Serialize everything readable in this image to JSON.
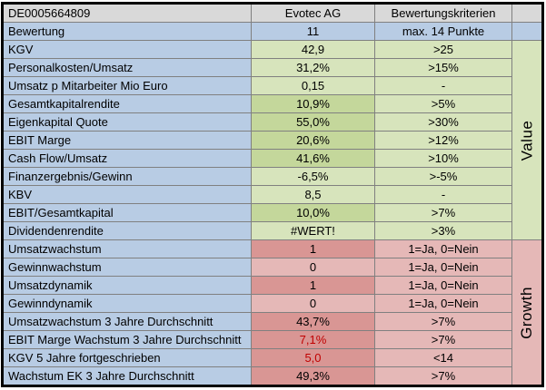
{
  "table": {
    "header": {
      "isin": "DE0005664809",
      "company": "Evotec AG",
      "criteria_title": "Bewertungskriterien"
    },
    "score": {
      "label": "Bewertung",
      "value": "11",
      "criteria": "max. 14 Punkte"
    },
    "sections": [
      {
        "name": "Value",
        "rows": [
          {
            "label": "KGV",
            "value": "42,9",
            "criteria": ">25",
            "value_bg": "light",
            "value_color": "black"
          },
          {
            "label": "Personalkosten/Umsatz",
            "value": "31,2%",
            "criteria": ">15%",
            "value_bg": "light",
            "value_color": "black"
          },
          {
            "label": "Umsatz p Mitarbeiter Mio Euro",
            "value": "0,15",
            "criteria": "-",
            "value_bg": "light",
            "value_color": "black"
          },
          {
            "label": "Gesamtkapitalrendite",
            "value": "10,9%",
            "criteria": ">5%",
            "value_bg": "dark",
            "value_color": "black"
          },
          {
            "label": "Eigenkapital Quote",
            "value": "55,0%",
            "criteria": ">30%",
            "value_bg": "dark",
            "value_color": "black"
          },
          {
            "label": "EBIT Marge",
            "value": "20,6%",
            "criteria": ">12%",
            "value_bg": "dark",
            "value_color": "black"
          },
          {
            "label": "Cash Flow/Umsatz",
            "value": "41,6%",
            "criteria": ">10%",
            "value_bg": "dark",
            "value_color": "black"
          },
          {
            "label": "Finanzergebnis/Gewinn",
            "value": "-6,5%",
            "criteria": ">-5%",
            "value_bg": "light",
            "value_color": "black"
          },
          {
            "label": "KBV",
            "value": "8,5",
            "criteria": "-",
            "value_bg": "light",
            "value_color": "black"
          },
          {
            "label": "EBIT/Gesamtkapital",
            "value": "10,0%",
            "criteria": ">7%",
            "value_bg": "dark",
            "value_color": "black"
          },
          {
            "label": "Dividendenrendite",
            "value": "#WERT!",
            "criteria": ">3%",
            "value_bg": "light",
            "value_color": "black"
          }
        ]
      },
      {
        "name": "Growth",
        "rows": [
          {
            "label": "Umsatzwachstum",
            "value": "1",
            "criteria": "1=Ja, 0=Nein",
            "value_bg": "dark",
            "value_color": "black"
          },
          {
            "label": "Gewinnwachstum",
            "value": "0",
            "criteria": "1=Ja, 0=Nein",
            "value_bg": "light",
            "value_color": "black"
          },
          {
            "label": "Umsatzdynamik",
            "value": "1",
            "criteria": "1=Ja, 0=Nein",
            "value_bg": "dark",
            "value_color": "black"
          },
          {
            "label": "Gewinndynamik",
            "value": "0",
            "criteria": "1=Ja, 0=Nein",
            "value_bg": "light",
            "value_color": "black"
          },
          {
            "label": "Umsatzwachstum 3 Jahre Durchschnitt",
            "value": "43,7%",
            "criteria": ">7%",
            "value_bg": "dark",
            "value_color": "black"
          },
          {
            "label": "EBIT Marge Wachstum 3 Jahre Durchschnitt",
            "value": "7,1%",
            "criteria": ">7%",
            "value_bg": "dark",
            "value_color": "red"
          },
          {
            "label": "KGV 5 Jahre fortgeschrieben",
            "value": "5,0",
            "criteria": "<14",
            "value_bg": "dark",
            "value_color": "red"
          },
          {
            "label": "Wachstum EK 3 Jahre Durchschnitt",
            "value": "49,3%",
            "criteria": ">7%",
            "value_bg": "dark",
            "value_color": "black"
          }
        ]
      }
    ]
  },
  "colors": {
    "header_gray": "#d9d9d9",
    "label_blue": "#b8cce4",
    "value_green_light": "#d7e4bc",
    "value_green_dark": "#c4d79b",
    "growth_pink_light": "#e5b8b7",
    "growth_pink_dark": "#d99694",
    "negative_value_text": "#c00000",
    "gridline": "#808080",
    "outer_border": "#000000"
  }
}
